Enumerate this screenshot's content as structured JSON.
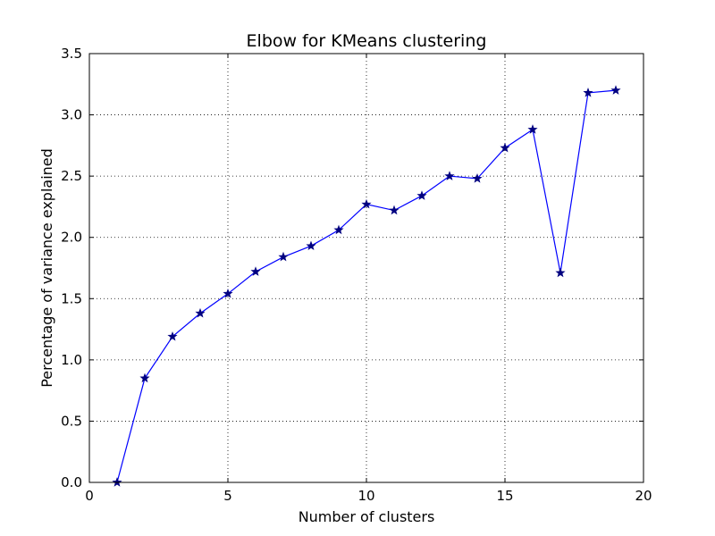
{
  "chart_data": {
    "type": "line",
    "title": "Elbow for KMeans clustering",
    "xlabel": "Number of clusters",
    "ylabel": "Percentage of variance explained",
    "xlim": [
      0,
      20
    ],
    "ylim": [
      0,
      3.5
    ],
    "xticks": [
      0,
      5,
      10,
      15,
      20
    ],
    "xtick_labels": [
      "0",
      "5",
      "10",
      "15",
      "20"
    ],
    "yticks": [
      0,
      0.5,
      1.0,
      1.5,
      2.0,
      2.5,
      3.0,
      3.5
    ],
    "ytick_labels": [
      "0.0",
      "0.5",
      "1.0",
      "1.5",
      "2.0",
      "2.5",
      "3.0",
      "3.5"
    ],
    "grid": true,
    "grid_style": "dotted",
    "marker": "star",
    "line_color": "#0000ff",
    "marker_color": "#000080",
    "series": [
      {
        "x": [
          1,
          2,
          3,
          4,
          5,
          6,
          7,
          8,
          9,
          10,
          11,
          12,
          13,
          14,
          15,
          16,
          17,
          18,
          19
        ],
        "y": [
          0.0,
          0.85,
          1.19,
          1.38,
          1.54,
          1.72,
          1.84,
          1.93,
          2.06,
          2.27,
          2.22,
          2.34,
          2.5,
          2.48,
          2.73,
          2.88,
          1.71,
          3.18,
          3.2
        ]
      }
    ]
  }
}
